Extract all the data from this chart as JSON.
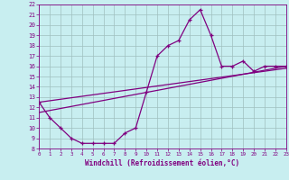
{
  "title": "",
  "xlabel": "Windchill (Refroidissement éolien,°C)",
  "ylabel": "",
  "bg_color": "#c8eef0",
  "grid_color": "#9fbfbf",
  "line_color": "#800080",
  "xmin": 0,
  "xmax": 23,
  "ymin": 8,
  "ymax": 22,
  "yticks": [
    8,
    9,
    10,
    11,
    12,
    13,
    14,
    15,
    16,
    17,
    18,
    19,
    20,
    21,
    22
  ],
  "xticks": [
    0,
    1,
    2,
    3,
    4,
    5,
    6,
    7,
    8,
    9,
    10,
    11,
    12,
    13,
    14,
    15,
    16,
    17,
    18,
    19,
    20,
    21,
    22,
    23
  ],
  "main_x": [
    0,
    1,
    2,
    3,
    4,
    5,
    6,
    7,
    8,
    9,
    10,
    11,
    12,
    13,
    14,
    15,
    16,
    17,
    18,
    19,
    20,
    21,
    22,
    23
  ],
  "main_y": [
    12.5,
    11.0,
    10.0,
    9.0,
    8.5,
    8.5,
    8.5,
    8.5,
    9.5,
    10.0,
    13.5,
    17.0,
    18.0,
    18.5,
    20.5,
    21.5,
    19.0,
    16.0,
    16.0,
    16.5,
    15.5,
    16.0,
    16.0,
    16.0
  ],
  "line1_x": [
    0,
    23
  ],
  "line1_y": [
    11.5,
    16.0
  ],
  "line2_x": [
    0,
    23
  ],
  "line2_y": [
    12.5,
    15.8
  ]
}
